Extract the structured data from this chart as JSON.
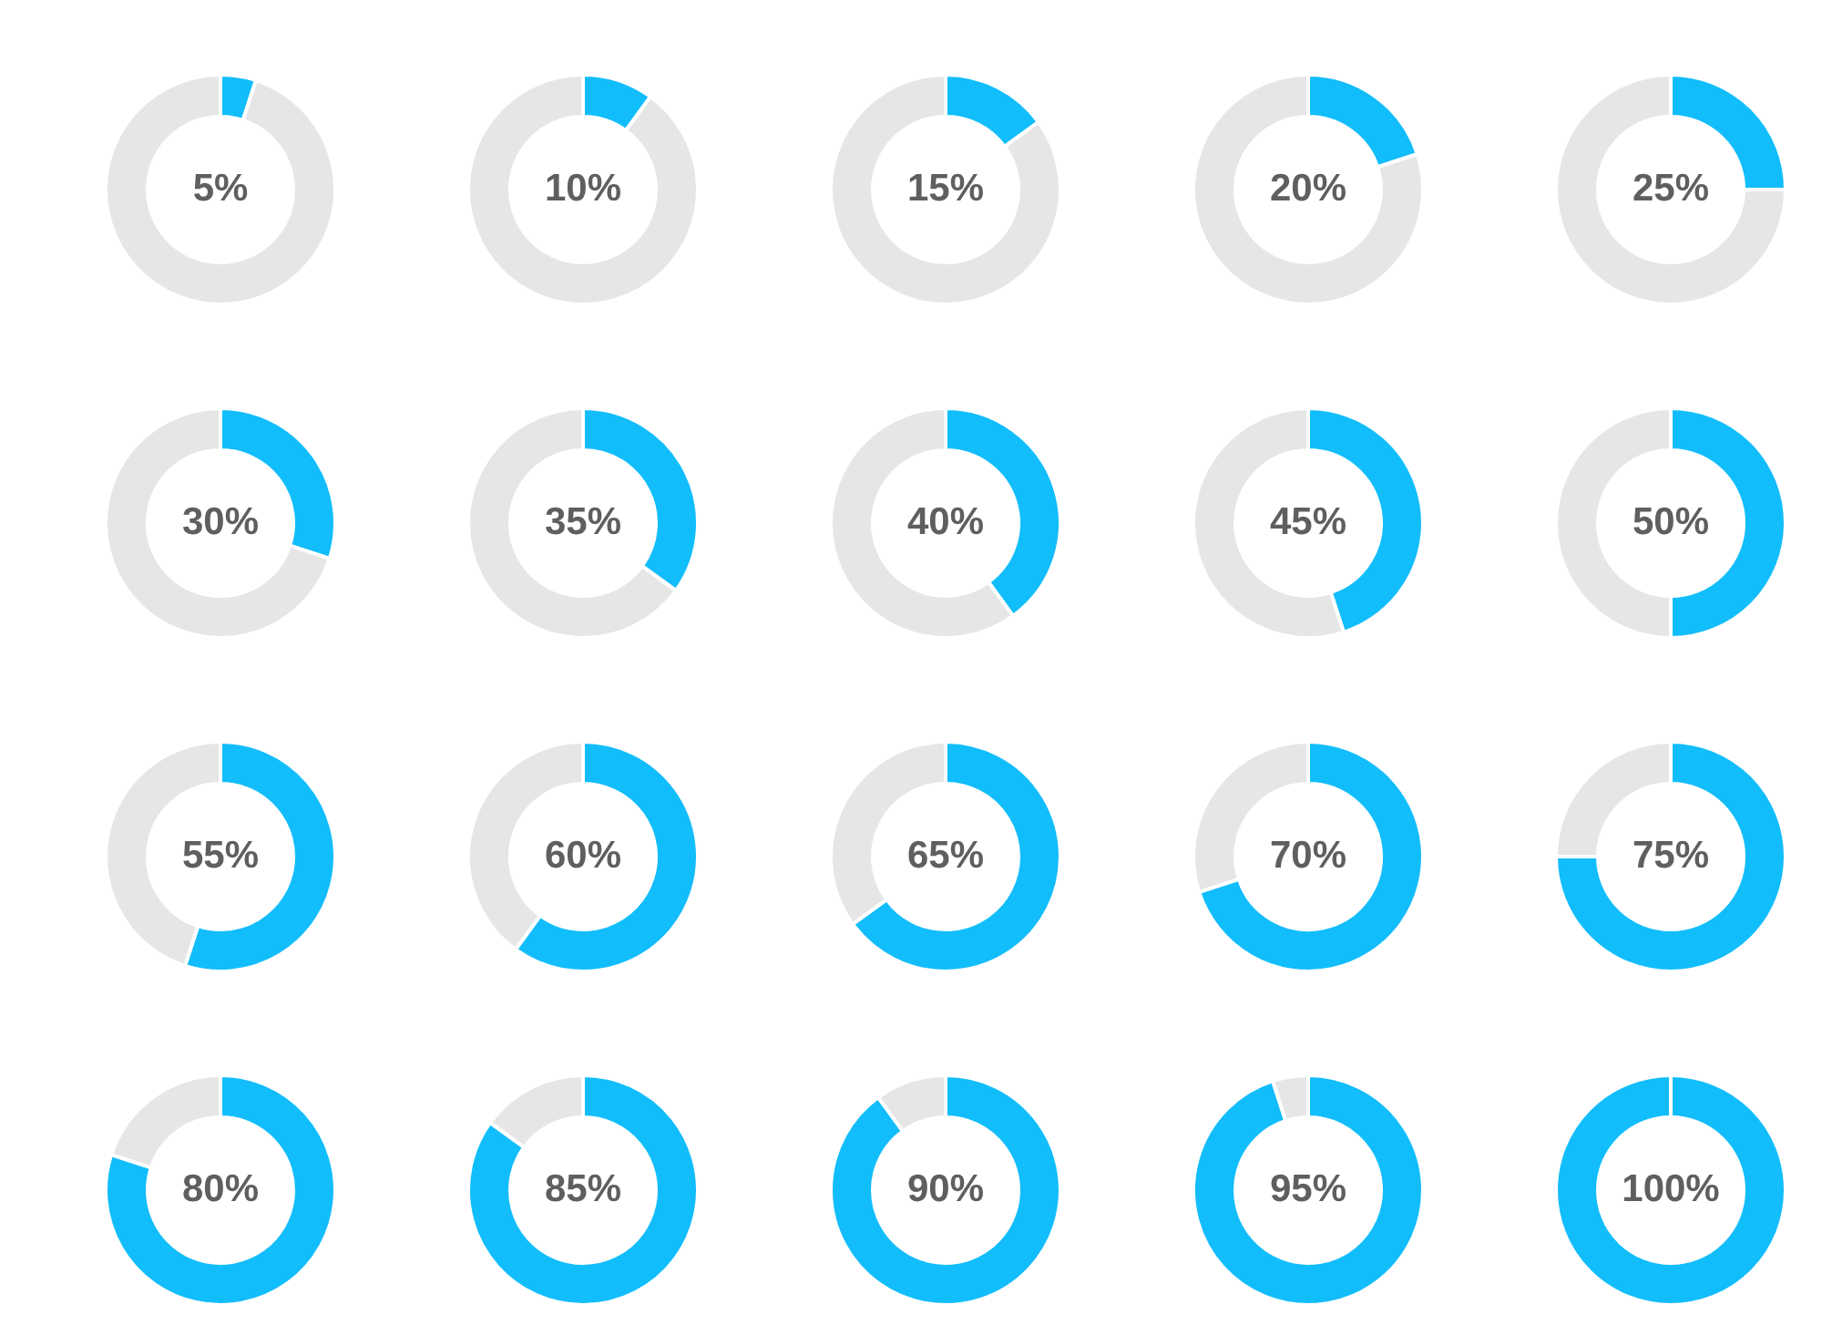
{
  "chart_data": [
    {
      "type": "donut",
      "categories": [
        null,
        null
      ],
      "values": [
        5,
        95
      ],
      "colors": [
        "#12bdfb",
        "#e6e6e6"
      ],
      "value_labels": [
        "5%",
        null
      ]
    },
    {
      "type": "donut",
      "categories": [
        null,
        null
      ],
      "values": [
        10,
        90
      ],
      "colors": [
        "#12bdfb",
        "#e6e6e6"
      ],
      "value_labels": [
        "10%",
        null
      ]
    },
    {
      "type": "donut",
      "categories": [
        null,
        null
      ],
      "values": [
        15,
        85
      ],
      "colors": [
        "#12bdfb",
        "#e6e6e6"
      ],
      "value_labels": [
        "15%",
        null
      ]
    },
    {
      "type": "donut",
      "categories": [
        null,
        null
      ],
      "values": [
        20,
        80
      ],
      "colors": [
        "#12bdfb",
        "#e6e6e6"
      ],
      "value_labels": [
        "20%",
        null
      ]
    },
    {
      "type": "donut",
      "categories": [
        null,
        null
      ],
      "values": [
        25,
        75
      ],
      "colors": [
        "#12bdfb",
        "#e6e6e6"
      ],
      "value_labels": [
        "25%",
        null
      ]
    },
    {
      "type": "donut",
      "categories": [
        null,
        null
      ],
      "values": [
        30,
        70
      ],
      "colors": [
        "#12bdfb",
        "#e6e6e6"
      ],
      "value_labels": [
        "30%",
        null
      ]
    },
    {
      "type": "donut",
      "categories": [
        null,
        null
      ],
      "values": [
        35,
        65
      ],
      "colors": [
        "#12bdfb",
        "#e6e6e6"
      ],
      "value_labels": [
        "35%",
        null
      ]
    },
    {
      "type": "donut",
      "categories": [
        null,
        null
      ],
      "values": [
        40,
        60
      ],
      "colors": [
        "#12bdfb",
        "#e6e6e6"
      ],
      "value_labels": [
        "40%",
        null
      ]
    },
    {
      "type": "donut",
      "categories": [
        null,
        null
      ],
      "values": [
        45,
        55
      ],
      "colors": [
        "#12bdfb",
        "#e6e6e6"
      ],
      "value_labels": [
        "45%",
        null
      ]
    },
    {
      "type": "donut",
      "categories": [
        null,
        null
      ],
      "values": [
        50,
        50
      ],
      "colors": [
        "#12bdfb",
        "#e6e6e6"
      ],
      "value_labels": [
        "50%",
        null
      ]
    },
    {
      "type": "donut",
      "categories": [
        null,
        null
      ],
      "values": [
        55,
        45
      ],
      "colors": [
        "#12bdfb",
        "#e6e6e6"
      ],
      "value_labels": [
        "55%",
        null
      ]
    },
    {
      "type": "donut",
      "categories": [
        null,
        null
      ],
      "values": [
        60,
        40
      ],
      "colors": [
        "#12bdfb",
        "#e6e6e6"
      ],
      "value_labels": [
        "60%",
        null
      ]
    },
    {
      "type": "donut",
      "categories": [
        null,
        null
      ],
      "values": [
        65,
        35
      ],
      "colors": [
        "#12bdfb",
        "#e6e6e6"
      ],
      "value_labels": [
        "65%",
        null
      ]
    },
    {
      "type": "donut",
      "categories": [
        null,
        null
      ],
      "values": [
        70,
        30
      ],
      "colors": [
        "#12bdfb",
        "#e6e6e6"
      ],
      "value_labels": [
        "70%",
        null
      ]
    },
    {
      "type": "donut",
      "categories": [
        null,
        null
      ],
      "values": [
        75,
        25
      ],
      "colors": [
        "#12bdfb",
        "#e6e6e6"
      ],
      "value_labels": [
        "75%",
        null
      ]
    },
    {
      "type": "donut",
      "categories": [
        null,
        null
      ],
      "values": [
        80,
        20
      ],
      "colors": [
        "#12bdfb",
        "#e6e6e6"
      ],
      "value_labels": [
        "80%",
        null
      ]
    },
    {
      "type": "donut",
      "categories": [
        null,
        null
      ],
      "values": [
        85,
        15
      ],
      "colors": [
        "#12bdfb",
        "#e6e6e6"
      ],
      "value_labels": [
        "85%",
        null
      ]
    },
    {
      "type": "donut",
      "categories": [
        null,
        null
      ],
      "values": [
        90,
        10
      ],
      "colors": [
        "#12bdfb",
        "#e6e6e6"
      ],
      "value_labels": [
        "90%",
        null
      ]
    },
    {
      "type": "donut",
      "categories": [
        null,
        null
      ],
      "values": [
        95,
        5
      ],
      "colors": [
        "#12bdfb",
        "#e6e6e6"
      ],
      "value_labels": [
        "95%",
        null
      ]
    },
    {
      "type": "donut",
      "categories": [
        null,
        null
      ],
      "values": [
        100,
        0
      ],
      "colors": [
        "#12bdfb",
        "#e6e6e6"
      ],
      "value_labels": [
        "100%",
        null
      ]
    }
  ]
}
